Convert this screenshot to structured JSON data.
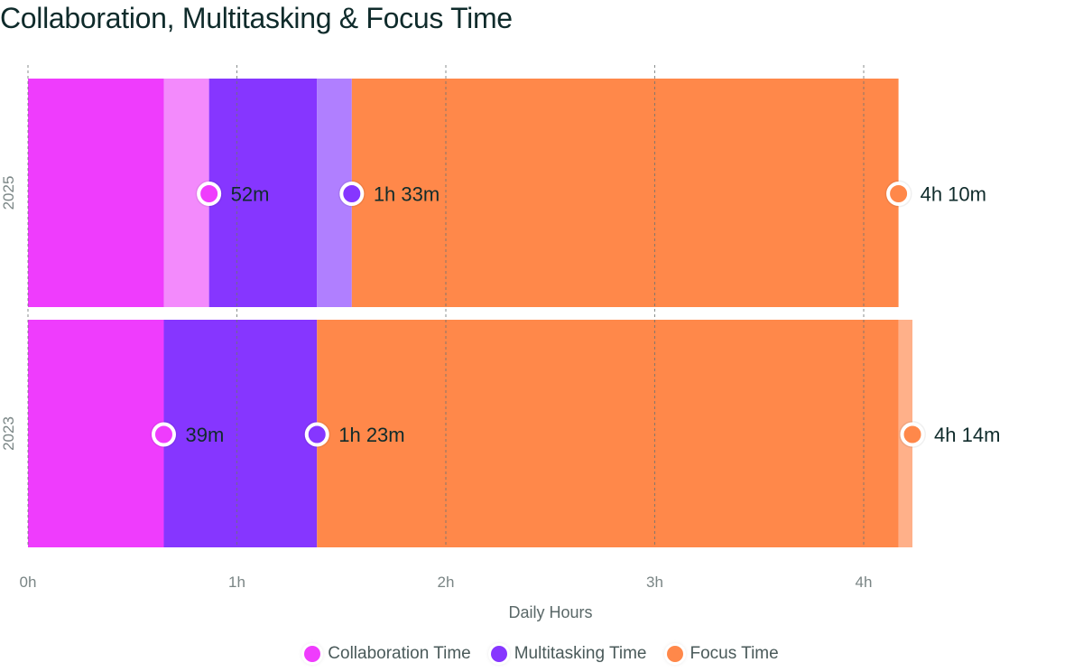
{
  "chart_data": {
    "type": "bar",
    "orientation": "horizontal",
    "stacked": "cumulative",
    "title": "Collaboration, Multitasking & Focus Time",
    "xlabel": "Daily Hours",
    "ylabel": "",
    "xlim_hours": [
      0,
      4.3
    ],
    "x_ticks": [
      "0h",
      "1h",
      "2h",
      "3h",
      "4h"
    ],
    "categories": [
      "2025",
      "2023"
    ],
    "series": [
      {
        "name": "Collaboration Time",
        "color": "#ef3cfd",
        "light_color": "#f38afc",
        "cumulative_minutes": [
          52,
          39
        ],
        "labels": [
          "52m",
          "39m"
        ]
      },
      {
        "name": "Multitasking Time",
        "color": "#8636ff",
        "light_color": "#b07fff",
        "cumulative_minutes": [
          93,
          83
        ],
        "labels": [
          "1h 33m",
          "1h 23m"
        ]
      },
      {
        "name": "Focus Time",
        "color": "#ff884a",
        "light_color": "#ffb089",
        "cumulative_minutes": [
          250,
          254
        ],
        "labels": [
          "4h 10m",
          "4h 14m"
        ]
      }
    ],
    "grid": true,
    "legend_position": "bottom"
  }
}
